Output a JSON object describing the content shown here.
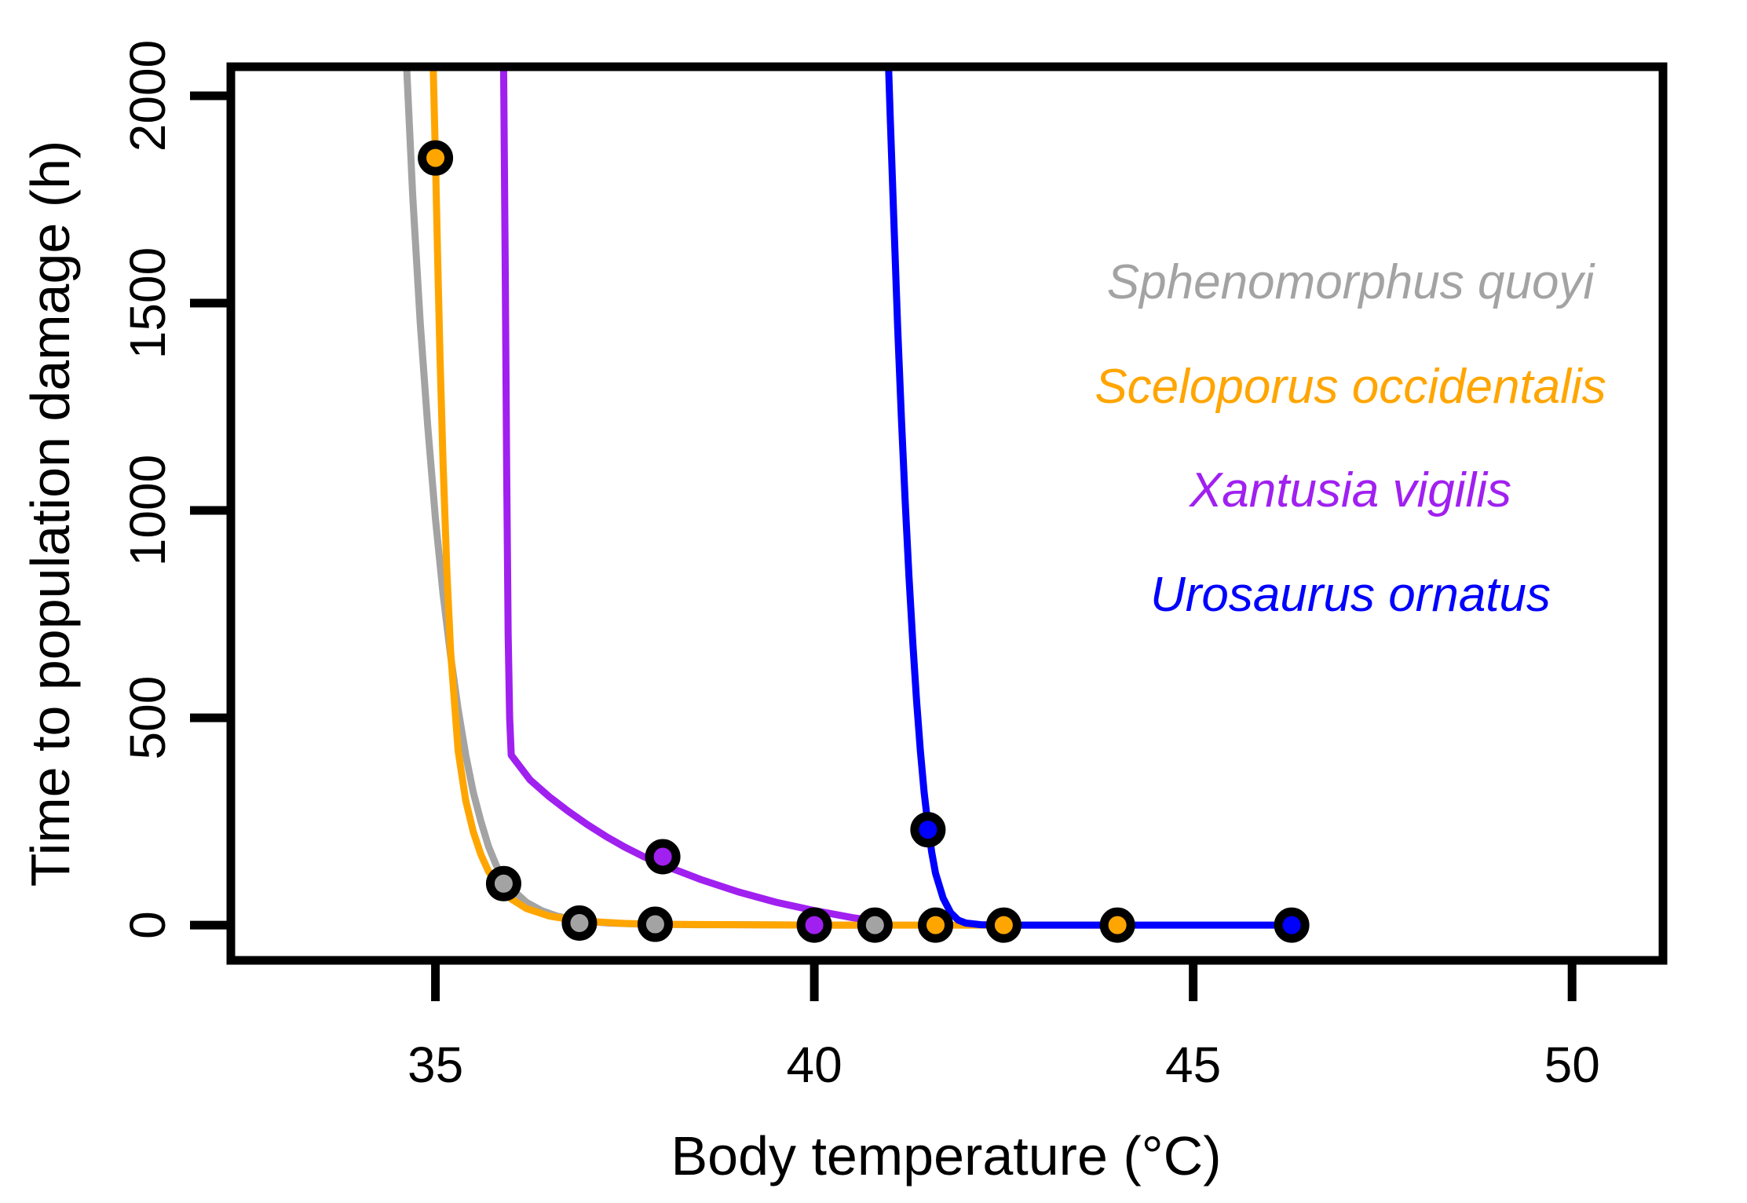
{
  "chart_data": {
    "type": "line",
    "title": "",
    "xlabel": "Body temperature (°C)",
    "ylabel": "Time to population damage (h)",
    "xlim": [
      32.3,
      51.2
    ],
    "ylim": [
      -85,
      2070
    ],
    "x_ticks": [
      35,
      40,
      45,
      50
    ],
    "x_tick_labels": [
      "35",
      "40",
      "45",
      "50"
    ],
    "y_ticks": [
      0,
      500,
      1000,
      1500,
      2000
    ],
    "y_tick_labels": [
      "0",
      "500",
      "1000",
      "1500",
      "2000"
    ],
    "grid": false,
    "legend_position": "right",
    "series": [
      {
        "name": "Sphenomorphus quoyi",
        "color": "#A3A3A3",
        "curve_x": [
          34.62,
          34.7,
          34.8,
          34.9,
          35.0,
          35.1,
          35.2,
          35.3,
          35.4,
          35.5,
          35.6,
          35.7,
          35.8,
          35.9,
          36.0,
          36.2,
          36.4,
          36.6,
          36.8,
          37.0,
          37.3,
          37.6,
          38.0,
          38.5,
          39.0,
          40.0,
          41.0
        ],
        "curve_y": [
          2070,
          1760,
          1450,
          1200,
          980,
          800,
          650,
          520,
          410,
          320,
          250,
          190,
          145,
          112,
          88,
          55,
          35,
          22,
          14,
          9,
          5,
          3,
          2,
          1,
          1,
          0,
          0
        ],
        "points_x": [
          35.9,
          36.9,
          37.9,
          40.8
        ],
        "points_y": [
          100,
          5,
          2,
          0
        ]
      },
      {
        "name": "Sceloporus occidentalis",
        "color": "#FFA500",
        "curve_x": [
          34.97,
          35.0,
          35.03,
          35.06,
          35.1,
          35.15,
          35.2,
          35.3,
          35.4,
          35.5,
          35.6,
          35.7,
          35.8,
          35.9,
          36.0,
          36.2,
          36.5,
          36.8,
          37.0,
          37.5,
          38.0,
          39.0,
          40.0,
          42.0,
          44.0
        ],
        "curve_y": [
          2070,
          1850,
          1600,
          1370,
          1120,
          860,
          660,
          420,
          300,
          225,
          170,
          130,
          102,
          80,
          63,
          40,
          22,
          13,
          9,
          4,
          2,
          1,
          0,
          0,
          0
        ],
        "points_x": [
          35.0,
          41.6,
          42.5,
          44.0
        ],
        "points_y": [
          1850,
          0,
          0,
          0
        ]
      },
      {
        "name": "Xantusia vigilis",
        "color": "#A020F0",
        "curve_x": [
          35.9,
          35.92,
          35.94,
          35.96,
          35.98,
          36.0,
          36.25,
          36.5,
          36.75,
          37.0,
          37.25,
          37.5,
          37.75,
          38.0,
          38.5,
          39.0,
          39.5,
          40.0,
          40.5,
          41.0
        ],
        "curve_y": [
          2070,
          1600,
          1100,
          700,
          500,
          410,
          350,
          310,
          275,
          243,
          214,
          188,
          165,
          145,
          110,
          80,
          55,
          35,
          18,
          5
        ],
        "points_x": [
          38.0,
          40.0
        ],
        "points_y": [
          165,
          0
        ]
      },
      {
        "name": "Urosaurus ornatus",
        "color": "#0000FF",
        "curve_x": [
          40.98,
          41.0,
          41.05,
          41.1,
          41.15,
          41.2,
          41.25,
          41.3,
          41.35,
          41.4,
          41.45,
          41.5,
          41.55,
          41.6,
          41.7,
          41.8,
          41.9,
          42.0,
          42.2,
          42.5,
          43.0,
          44.0,
          45.0,
          46.3
        ],
        "curve_y": [
          2070,
          1960,
          1700,
          1440,
          1220,
          1020,
          840,
          680,
          540,
          420,
          320,
          240,
          175,
          125,
          65,
          30,
          12,
          5,
          1,
          0,
          0,
          0,
          0,
          0
        ],
        "points_x": [
          41.5,
          46.3
        ],
        "points_y": [
          230,
          0
        ]
      }
    ]
  }
}
